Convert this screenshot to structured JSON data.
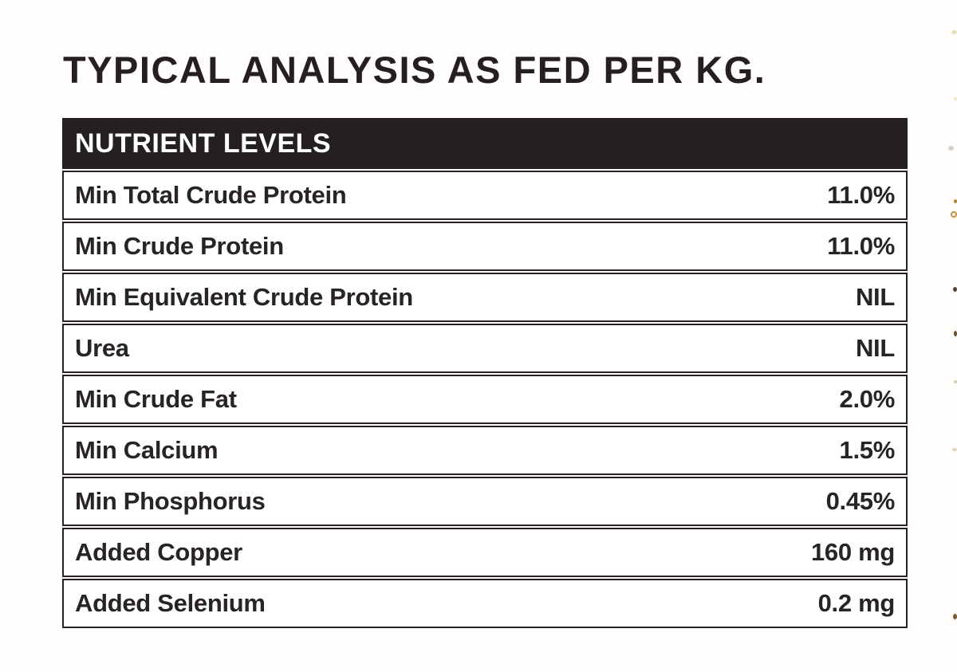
{
  "title": "TYPICAL ANALYSIS AS FED PER KG.",
  "table": {
    "header": "NUTRIENT LEVELS",
    "rows": [
      {
        "label": "Min Total Crude Protein",
        "value": "11.0%"
      },
      {
        "label": "Min Crude Protein",
        "value": "11.0%"
      },
      {
        "label": "Min Equivalent Crude Protein",
        "value": "NIL"
      },
      {
        "label": "Urea",
        "value": "NIL"
      },
      {
        "label": "Min Crude Fat",
        "value": "2.0%"
      },
      {
        "label": "Min Calcium",
        "value": "1.5%"
      },
      {
        "label": "Min Phosphorus",
        "value": "0.45%"
      },
      {
        "label": "Added Copper",
        "value": "160 mg"
      },
      {
        "label": "Added Selenium",
        "value": "0.2 mg"
      }
    ]
  },
  "colors": {
    "header_bg": "#241f20",
    "row_border": "#272223",
    "text": "#282324",
    "page_bg": "#fffefd"
  }
}
